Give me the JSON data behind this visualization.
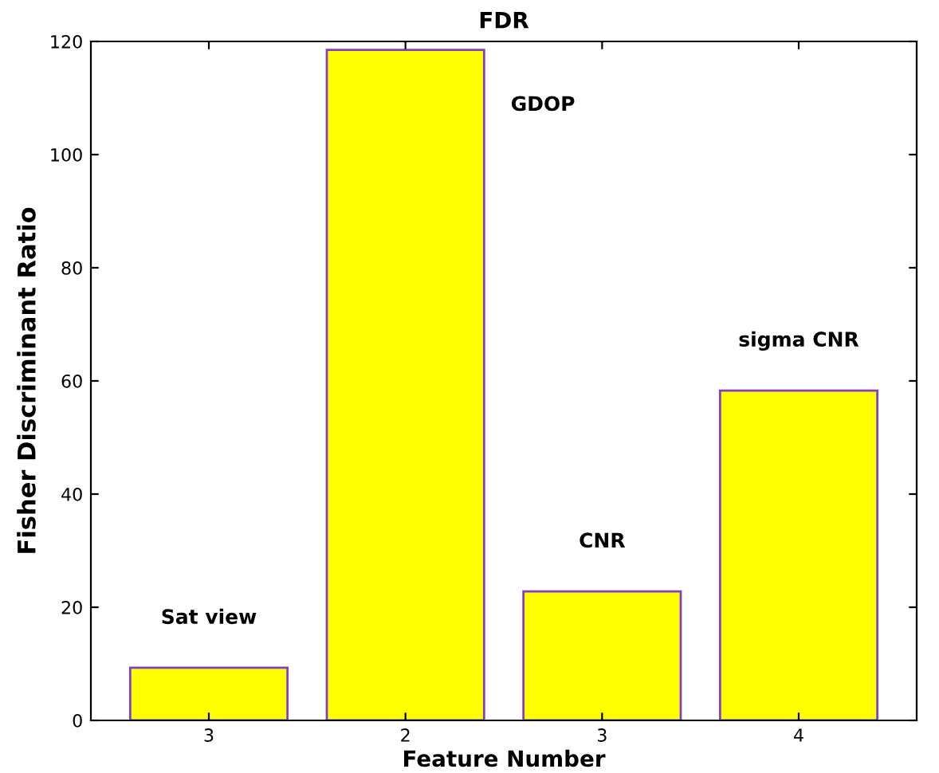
{
  "chart_data": {
    "type": "bar",
    "title": "FDR",
    "xlabel": "Feature Number",
    "ylabel": "Fisher Discriminant Ratio",
    "categories": [
      "3",
      "2",
      "3",
      "4"
    ],
    "values": [
      9.3,
      118.5,
      22.8,
      58.3
    ],
    "color": "#ffff00",
    "annotations": [
      "Sat view",
      "GDOP",
      "CNR",
      "sigma CNR"
    ],
    "ylim": [
      0,
      120
    ],
    "yticks": [
      0,
      20,
      40,
      60,
      80,
      100,
      120
    ],
    "grid": false
  }
}
